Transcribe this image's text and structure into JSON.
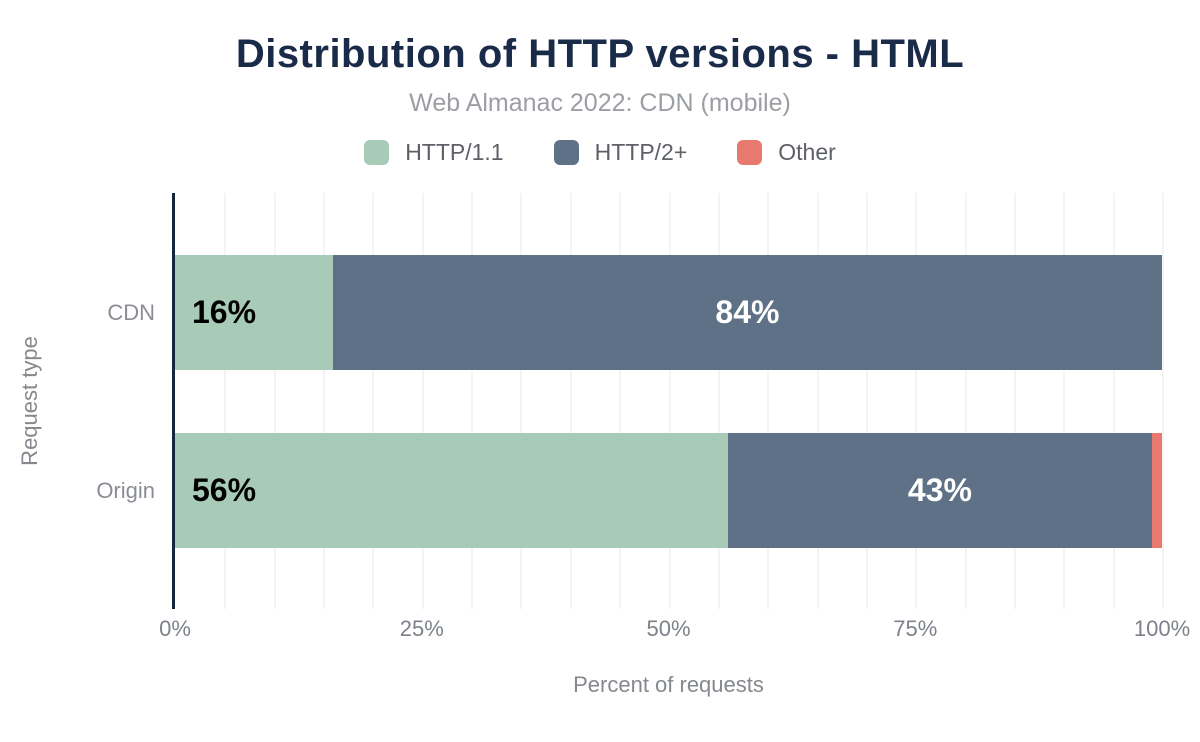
{
  "title": "Distribution of HTTP versions - HTML",
  "subtitle": "Web Almanac 2022: CDN (mobile)",
  "legend": [
    {
      "label": "HTTP/1.1",
      "color": "#a8cbb7"
    },
    {
      "label": "HTTP/2+",
      "color": "#5f7186"
    },
    {
      "label": "Other",
      "color": "#e8796f"
    }
  ],
  "chart_data": {
    "type": "bar",
    "orientation": "horizontal",
    "stacked": true,
    "categories": [
      "CDN",
      "Origin"
    ],
    "series": [
      {
        "name": "HTTP/1.1",
        "color": "#a8cbb7",
        "values": [
          16,
          56
        ],
        "labels": [
          "16%",
          "56%"
        ]
      },
      {
        "name": "HTTP/2+",
        "color": "#5f7186",
        "values": [
          84,
          43
        ],
        "labels": [
          "84%",
          "43%"
        ]
      },
      {
        "name": "Other",
        "color": "#e8796f",
        "values": [
          0,
          1
        ],
        "labels": [
          "",
          ""
        ]
      }
    ],
    "title": "Distribution of HTTP versions - HTML",
    "subtitle": "Web Almanac 2022: CDN (mobile)",
    "xlabel": "Percent of requests",
    "ylabel": "Request type",
    "xlim": [
      0,
      100
    ],
    "x_ticks": [
      "0%",
      "25%",
      "50%",
      "75%",
      "100%"
    ],
    "x_tick_pos": [
      0,
      25,
      50,
      75,
      100
    ],
    "grid_minor_step_pct": 5,
    "grid": "minor vertical gridlines on",
    "legend_position": "top"
  },
  "colors": {
    "title_text": "#1a2b49",
    "subtitle_text": "#9b9ea3",
    "legend_text": "#5d6167",
    "axis_line": "#16263f",
    "gridline": "#f4f4f6",
    "tick_text": "#7d828a",
    "category_text": "#8a8e94",
    "axis_title_text": "#85888d",
    "bar_label_on_light": "#000000",
    "bar_label_on_dark": "#ffffff"
  }
}
